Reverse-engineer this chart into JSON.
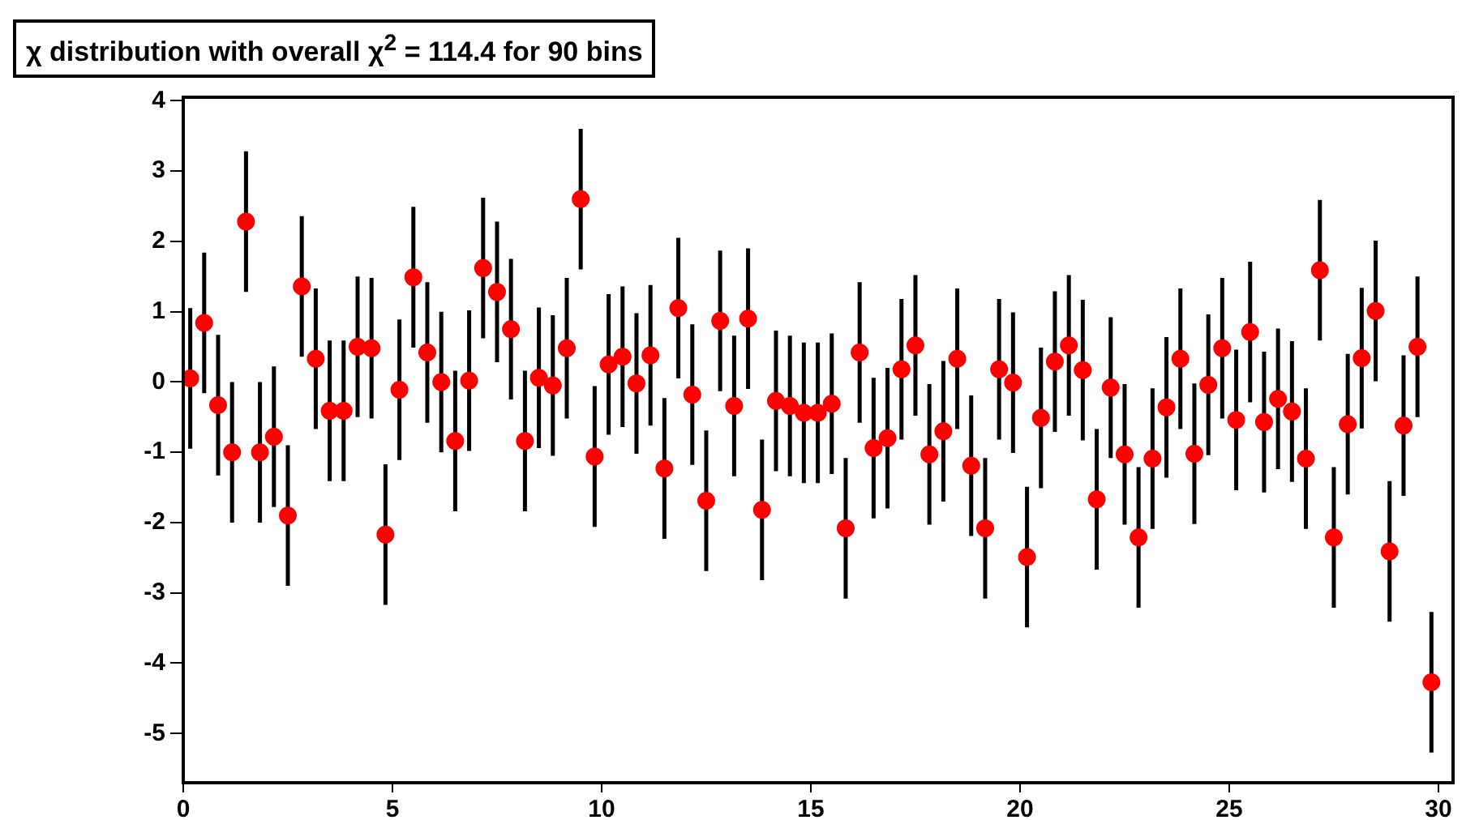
{
  "chart_data": {
    "type": "scatter",
    "title": "χ distribution with overall χ$^{2}$ = 114.4 for 90 bins",
    "x": [
      0.167,
      0.5,
      0.833,
      1.167,
      1.5,
      1.833,
      2.167,
      2.5,
      2.833,
      3.167,
      3.5,
      3.833,
      4.167,
      4.5,
      4.833,
      5.167,
      5.5,
      5.833,
      6.167,
      6.5,
      6.833,
      7.167,
      7.5,
      7.833,
      8.167,
      8.5,
      8.833,
      9.167,
      9.5,
      9.833,
      10.167,
      10.5,
      10.833,
      11.167,
      11.5,
      11.833,
      12.167,
      12.5,
      12.833,
      13.167,
      13.5,
      13.833,
      14.167,
      14.5,
      14.833,
      15.167,
      15.5,
      15.833,
      16.167,
      16.5,
      16.833,
      17.167,
      17.5,
      17.833,
      18.167,
      18.5,
      18.833,
      19.167,
      19.5,
      19.833,
      20.167,
      20.5,
      20.833,
      21.167,
      21.5,
      21.833,
      22.167,
      22.5,
      22.833,
      23.167,
      23.5,
      23.833,
      24.167,
      24.5,
      24.833,
      25.167,
      25.5,
      25.833,
      26.167,
      26.5,
      26.833,
      27.167,
      27.5,
      27.833,
      28.167,
      28.5,
      28.833,
      29.167,
      29.5,
      29.833
    ],
    "values": [
      0.05,
      0.84,
      -0.33,
      -1.0,
      2.28,
      -1.0,
      -0.78,
      -1.9,
      1.36,
      0.33,
      -0.41,
      -0.41,
      0.5,
      0.48,
      -2.17,
      -0.11,
      1.49,
      0.42,
      0.0,
      -0.84,
      0.02,
      1.62,
      1.28,
      0.75,
      -0.84,
      0.06,
      -0.05,
      0.48,
      2.6,
      -1.06,
      0.25,
      0.36,
      -0.02,
      0.38,
      -1.23,
      1.05,
      -0.18,
      -1.69,
      0.87,
      -0.34,
      0.9,
      -1.82,
      -0.27,
      -0.34,
      -0.44,
      -0.44,
      -0.31,
      -2.08,
      0.42,
      -0.94,
      -0.8,
      0.18,
      0.52,
      -1.03,
      -0.7,
      0.33,
      -1.19,
      -2.08,
      0.18,
      -0.01,
      -2.49,
      -0.51,
      0.29,
      0.52,
      0.17,
      -1.67,
      -0.08,
      -1.03,
      -2.21,
      -1.09,
      -0.36,
      0.33,
      -1.02,
      -0.04,
      0.48,
      -0.54,
      0.71,
      -0.57,
      -0.24,
      -0.42,
      -1.09,
      1.59,
      -2.21,
      -0.6,
      0.34,
      1.01,
      -2.41,
      -0.62,
      0.5,
      -4.27
    ],
    "errors": [
      1,
      1,
      1,
      1,
      1,
      1,
      1,
      1,
      1,
      1,
      1,
      1,
      1,
      1,
      1,
      1,
      1,
      1,
      1,
      1,
      1,
      1,
      1,
      1,
      1,
      1,
      1,
      1,
      1,
      1,
      1,
      1,
      1,
      1,
      1,
      1,
      1,
      1,
      1,
      1,
      1,
      1,
      1,
      1,
      1,
      1,
      1,
      1,
      1,
      1,
      1,
      1,
      1,
      1,
      1,
      1,
      1,
      1,
      1,
      1,
      1,
      1,
      1,
      1,
      1,
      1,
      1,
      1,
      1,
      1,
      1,
      1,
      1,
      1,
      1,
      1,
      1,
      1,
      1,
      1,
      1,
      1,
      1,
      1,
      1,
      1,
      1,
      1,
      1,
      1
    ],
    "color": "#ff0000",
    "marker": "circle",
    "grid": false,
    "legend": false,
    "xlim": [
      0,
      30.35
    ],
    "xticks": [
      0,
      5,
      10,
      15,
      20,
      25,
      30
    ],
    "ylim": [
      -5.7,
      4.05
    ],
    "yticks": [
      -5,
      -4,
      -3,
      -2,
      -1,
      0,
      1,
      2,
      3,
      4
    ]
  }
}
